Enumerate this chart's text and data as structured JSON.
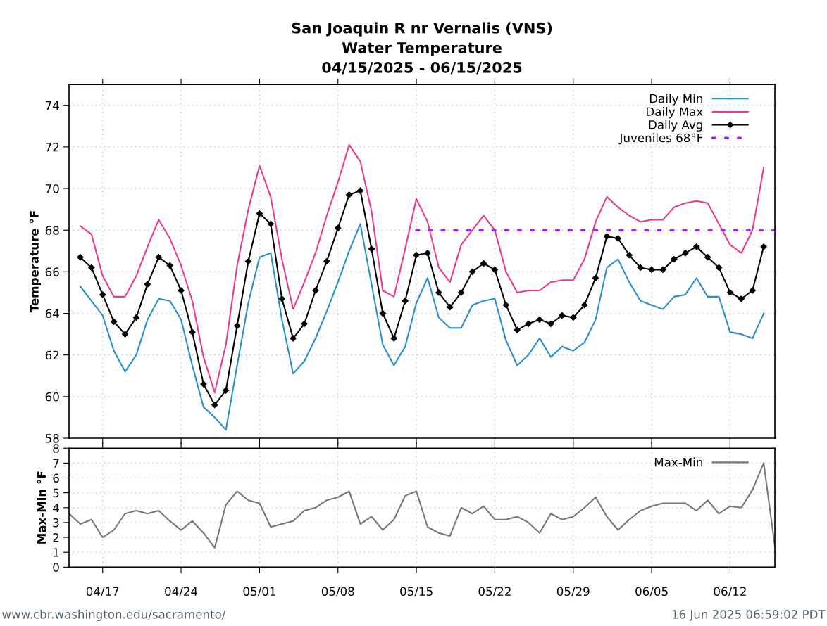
{
  "chart_data": [
    {
      "type": "line",
      "title": "San Joaquin R nr Vernalis (VNS)\nWater Temperature\n04/15/2025 - 06/15/2025",
      "ylabel": "Temperature °F",
      "x": [
        "2025-04-15",
        "2025-04-16",
        "2025-04-17",
        "2025-04-18",
        "2025-04-19",
        "2025-04-20",
        "2025-04-21",
        "2025-04-22",
        "2025-04-23",
        "2025-04-24",
        "2025-04-25",
        "2025-04-26",
        "2025-04-27",
        "2025-04-28",
        "2025-04-29",
        "2025-04-30",
        "2025-05-01",
        "2025-05-02",
        "2025-05-03",
        "2025-05-04",
        "2025-05-05",
        "2025-05-06",
        "2025-05-07",
        "2025-05-08",
        "2025-05-09",
        "2025-05-10",
        "2025-05-11",
        "2025-05-12",
        "2025-05-13",
        "2025-05-14",
        "2025-05-15",
        "2025-05-16",
        "2025-05-17",
        "2025-05-18",
        "2025-05-19",
        "2025-05-20",
        "2025-05-21",
        "2025-05-22",
        "2025-05-23",
        "2025-05-24",
        "2025-05-25",
        "2025-05-26",
        "2025-05-27",
        "2025-05-28",
        "2025-05-29",
        "2025-05-30",
        "2025-05-31",
        "2025-06-01",
        "2025-06-02",
        "2025-06-03",
        "2025-06-04",
        "2025-06-05",
        "2025-06-06",
        "2025-06-07",
        "2025-06-08",
        "2025-06-09",
        "2025-06-10",
        "2025-06-11",
        "2025-06-12",
        "2025-06-13",
        "2025-06-14",
        "2025-06-15"
      ],
      "series": [
        {
          "name": "Daily Min",
          "color": "#2a8fcd",
          "marker": "none",
          "line_style": "solid",
          "values": [
            65.3,
            64.6,
            63.9,
            62.2,
            61.2,
            62.0,
            63.7,
            64.7,
            64.6,
            63.7,
            61.5,
            59.5,
            59.0,
            58.4,
            61.5,
            64.5,
            66.7,
            66.9,
            63.7,
            61.1,
            61.7,
            62.8,
            64.1,
            65.5,
            67.0,
            68.3,
            65.4,
            62.5,
            61.5,
            62.4,
            64.5,
            65.7,
            63.8,
            63.3,
            63.3,
            64.4,
            64.6,
            64.7,
            62.7,
            61.5,
            62.0,
            62.8,
            61.9,
            62.4,
            62.2,
            62.6,
            63.7,
            66.2,
            66.6,
            65.5,
            64.6,
            64.4,
            64.2,
            64.8,
            64.9,
            65.7,
            64.8,
            64.8,
            63.1,
            63.0,
            62.8,
            64.0
          ]
        },
        {
          "name": "Daily Max",
          "color": "#ea3c8f",
          "marker": "none",
          "line_style": "solid",
          "values": [
            68.2,
            67.8,
            65.8,
            64.8,
            64.8,
            65.8,
            67.2,
            68.5,
            67.6,
            66.3,
            64.6,
            61.9,
            60.2,
            62.5,
            66.3,
            69.0,
            71.1,
            69.6,
            66.6,
            64.2,
            65.5,
            66.9,
            68.7,
            70.3,
            72.1,
            71.3,
            68.9,
            65.1,
            64.8,
            67.1,
            69.5,
            68.4,
            66.2,
            65.5,
            67.3,
            68.0,
            68.7,
            68.0,
            66.0,
            65.0,
            65.1,
            65.1,
            65.5,
            65.6,
            65.6,
            66.6,
            68.4,
            69.6,
            69.1,
            68.7,
            68.4,
            68.5,
            68.5,
            69.1,
            69.3,
            69.4,
            69.3,
            68.3,
            67.3,
            66.9,
            68.0,
            71.0
          ]
        },
        {
          "name": "Daily Avg",
          "color": "#000000",
          "marker": "diamond",
          "line_style": "solid",
          "values": [
            66.7,
            66.2,
            64.9,
            63.6,
            63.0,
            63.8,
            65.4,
            66.7,
            66.3,
            65.1,
            63.1,
            60.6,
            59.6,
            60.3,
            63.4,
            66.5,
            68.8,
            68.3,
            64.7,
            62.8,
            63.5,
            65.1,
            66.5,
            68.1,
            69.7,
            69.9,
            67.1,
            64.0,
            62.8,
            64.6,
            66.8,
            66.9,
            65.0,
            64.3,
            65.0,
            66.0,
            66.4,
            66.1,
            64.4,
            63.2,
            63.5,
            63.7,
            63.5,
            63.9,
            63.8,
            64.4,
            65.7,
            67.7,
            67.6,
            66.8,
            66.2,
            66.1,
            66.1,
            66.6,
            66.9,
            67.2,
            66.7,
            66.2,
            65.0,
            64.7,
            65.1,
            67.2
          ]
        },
        {
          "name": "Juveniles 68°F",
          "color": "#a020f0",
          "marker": "none",
          "line_style": "dotted",
          "x": [
            "2025-05-15",
            "2025-06-16"
          ],
          "values": [
            68,
            68
          ]
        }
      ],
      "xlim": [
        "2025-04-14",
        "2025-06-16"
      ],
      "xticks": [
        {
          "value": "2025-04-17",
          "label": null
        },
        {
          "value": "2025-04-24",
          "label": null
        },
        {
          "value": "2025-05-01",
          "label": null
        },
        {
          "value": "2025-05-08",
          "label": null
        },
        {
          "value": "2025-05-15",
          "label": null
        },
        {
          "value": "2025-05-22",
          "label": null
        },
        {
          "value": "2025-05-29",
          "label": null
        },
        {
          "value": "2025-06-05",
          "label": null
        },
        {
          "value": "2025-06-12",
          "label": null
        }
      ],
      "ylim": [
        58,
        75
      ],
      "yticks": [
        58,
        60,
        62,
        64,
        66,
        68,
        70,
        72,
        74
      ],
      "grid": true,
      "legend": "top right",
      "tick_labels": "y"
    },
    {
      "type": "line",
      "ylabel": "Max-Min °F",
      "annotations": [
        "www.cbr.washington.edu/sacramento/",
        "16 Jun 2025 06:59:02 PDT"
      ],
      "x": [
        "2025-04-14",
        "2025-04-15",
        "2025-04-16",
        "2025-04-17",
        "2025-04-18",
        "2025-04-19",
        "2025-04-20",
        "2025-04-21",
        "2025-04-22",
        "2025-04-23",
        "2025-04-24",
        "2025-04-25",
        "2025-04-26",
        "2025-04-27",
        "2025-04-28",
        "2025-04-29",
        "2025-04-30",
        "2025-05-01",
        "2025-05-02",
        "2025-05-03",
        "2025-05-04",
        "2025-05-05",
        "2025-05-06",
        "2025-05-07",
        "2025-05-08",
        "2025-05-09",
        "2025-05-10",
        "2025-05-11",
        "2025-05-12",
        "2025-05-13",
        "2025-05-14",
        "2025-05-15",
        "2025-05-16",
        "2025-05-17",
        "2025-05-18",
        "2025-05-19",
        "2025-05-20",
        "2025-05-21",
        "2025-05-22",
        "2025-05-23",
        "2025-05-24",
        "2025-05-25",
        "2025-05-26",
        "2025-05-27",
        "2025-05-28",
        "2025-05-29",
        "2025-05-30",
        "2025-05-31",
        "2025-06-01",
        "2025-06-02",
        "2025-06-03",
        "2025-06-04",
        "2025-06-05",
        "2025-06-06",
        "2025-06-07",
        "2025-06-08",
        "2025-06-09",
        "2025-06-10",
        "2025-06-11",
        "2025-06-12",
        "2025-06-13",
        "2025-06-14",
        "2025-06-15",
        "2025-06-16"
      ],
      "series": [
        {
          "name": "Max-Min",
          "color": "#777777",
          "marker": "none",
          "line_style": "solid",
          "values": [
            3.6,
            2.9,
            3.2,
            2.0,
            2.5,
            3.6,
            3.8,
            3.6,
            3.8,
            3.1,
            2.5,
            3.1,
            2.3,
            1.3,
            4.2,
            5.1,
            4.5,
            4.3,
            2.7,
            2.9,
            3.1,
            3.8,
            4.0,
            4.5,
            4.7,
            5.1,
            2.9,
            3.4,
            2.5,
            3.2,
            4.8,
            5.1,
            2.7,
            2.3,
            2.1,
            4.0,
            3.6,
            4.1,
            3.2,
            3.2,
            3.4,
            3.0,
            2.3,
            3.6,
            3.2,
            3.4,
            4.0,
            4.7,
            3.4,
            2.5,
            3.2,
            3.8,
            4.1,
            4.3,
            4.3,
            4.3,
            3.8,
            4.5,
            3.6,
            4.1,
            4.0,
            5.2,
            7.0,
            1.4
          ]
        }
      ],
      "xlim": [
        "2025-04-14",
        "2025-06-16"
      ],
      "xticks": [
        {
          "value": "2025-04-17",
          "label": "04/17"
        },
        {
          "value": "2025-04-24",
          "label": "04/24"
        },
        {
          "value": "2025-05-01",
          "label": "05/01"
        },
        {
          "value": "2025-05-08",
          "label": "05/08"
        },
        {
          "value": "2025-05-15",
          "label": "05/15"
        },
        {
          "value": "2025-05-22",
          "label": "05/22"
        },
        {
          "value": "2025-05-29",
          "label": "05/29"
        },
        {
          "value": "2025-06-05",
          "label": "06/05"
        },
        {
          "value": "2025-06-12",
          "label": "06/12"
        }
      ],
      "ylim": [
        0,
        8
      ],
      "yticks": [
        0,
        1,
        2,
        3,
        4,
        5,
        6,
        7,
        8
      ],
      "grid": true,
      "legend": "top right"
    }
  ]
}
